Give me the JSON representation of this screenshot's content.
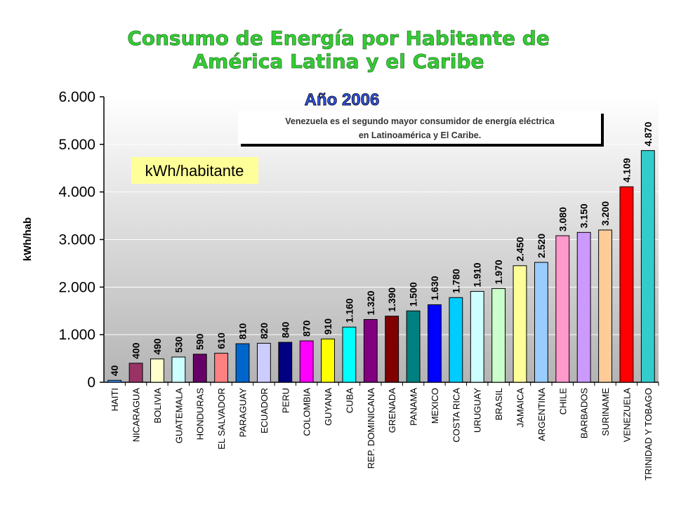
{
  "title": {
    "line1": "Consumo de Energía por Habitante de",
    "line2": "América Latina y el Caribe"
  },
  "chart_data": {
    "type": "bar",
    "subtitle": "Año 2006",
    "unit_box": "kWh/habitante",
    "annotation": {
      "line1": "Venezuela es el segundo mayor consumidor de energía eléctrica",
      "line2": "en Latinoamérica y El Caribe."
    },
    "ylabel": "kWh/hab",
    "ylim": [
      0,
      6000
    ],
    "yticks": [
      0,
      1000,
      2000,
      3000,
      4000,
      5000,
      6000
    ],
    "ytick_labels": [
      "0",
      "1.000",
      "2.000",
      "3.000",
      "4.000",
      "5.000",
      "6.000"
    ],
    "grid": true,
    "categories": [
      "HAITI",
      "NICARAGUA",
      "BOLIVIA",
      "GUATEMALA",
      "HONDURAS",
      "EL SALVADOR",
      "PARAGUAY",
      "ECUADOR",
      "PERU",
      "COLOMBIA",
      "GUYANA",
      "CUBA",
      "REP. DOMINICANA",
      "GRENADA",
      "PANAMA",
      "MEXICO",
      "COSTA RICA",
      "URUGUAY",
      "BRASIL",
      "JAMAICA",
      "ARGENTINA",
      "CHILE",
      "BARBADOS",
      "SURINAME",
      "VENEZUELA",
      "TRINIDAD Y TOBAGO"
    ],
    "values": [
      40,
      400,
      490,
      530,
      590,
      610,
      810,
      820,
      840,
      870,
      910,
      1160,
      1320,
      1390,
      1500,
      1630,
      1780,
      1910,
      1970,
      2450,
      2520,
      3080,
      3150,
      3200,
      4109,
      4870
    ],
    "value_labels": [
      "40",
      "400",
      "490",
      "530",
      "590",
      "610",
      "810",
      "820",
      "840",
      "870",
      "910",
      "1.160",
      "1.320",
      "1.390",
      "1.500",
      "1.630",
      "1.780",
      "1.910",
      "1.970",
      "2.450",
      "2.520",
      "3.080",
      "3.150",
      "3.200",
      "4.109",
      "4.870"
    ],
    "colors": [
      "#3399ff",
      "#993366",
      "#ffffcc",
      "#ccffff",
      "#660066",
      "#ff8080",
      "#0066cc",
      "#ccccff",
      "#000080",
      "#ff00ff",
      "#ffff00",
      "#00ffff",
      "#800080",
      "#800000",
      "#008080",
      "#0000ff",
      "#00ccff",
      "#ccffff",
      "#ccffcc",
      "#ffff99",
      "#99ccff",
      "#ff99cc",
      "#cc99ff",
      "#ffcc99",
      "#ff0000",
      "#33cccc"
    ]
  }
}
